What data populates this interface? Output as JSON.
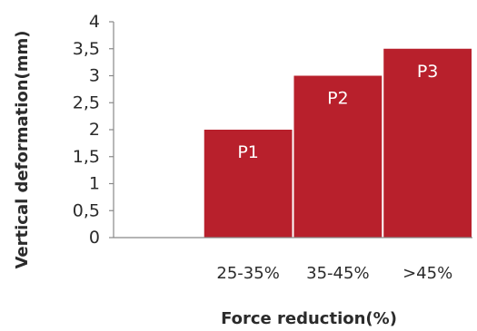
{
  "chart_data": {
    "type": "bar",
    "xlabel": "Force reduction(%)",
    "ylabel": "Vertical deformation(mm)",
    "ylim": [
      0,
      4
    ],
    "yticks": [
      "0",
      "0,5",
      "1",
      "1,5",
      "2",
      "2,5",
      "3",
      "3,5",
      "4"
    ],
    "categories": [
      "",
      "25-35%",
      "35-45%",
      ">45%"
    ],
    "values": [
      null,
      2,
      3,
      3.5
    ],
    "bar_labels": [
      "",
      "P1",
      "P2",
      "P3"
    ],
    "grid": false,
    "legend": "none",
    "bar_color": "#b8202c"
  }
}
